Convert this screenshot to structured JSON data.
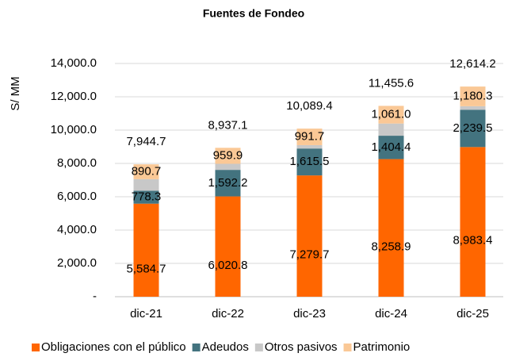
{
  "chart_data": {
    "type": "stacked_bar",
    "title": "Fuentes de Fondeo",
    "ylabel": "S/ MM",
    "categories": [
      "dic-21",
      "dic-22",
      "dic-23",
      "dic-24",
      "dic-25"
    ],
    "series": [
      {
        "name": "Obligaciones con el público",
        "color": "#ff6600",
        "values": [
          5584.7,
          6020.8,
          7279.7,
          8258.9,
          8983.4
        ],
        "value_labels": [
          "5,584.7",
          "6,020.8",
          "7,279.7",
          "8,258.9",
          "8,983.4"
        ]
      },
      {
        "name": "Adeudos",
        "color": "#43737f",
        "values": [
          778.3,
          1592.2,
          1615.5,
          1404.4,
          2239.5
        ],
        "value_labels": [
          "778.3",
          "1,592.2",
          "1,615.5",
          "1,404.4",
          "2,239.5"
        ]
      },
      {
        "name": "Otros pasivos",
        "color": "#c8c8c8",
        "values": [
          691.0,
          364.2,
          202.5,
          731.3,
          211.0
        ]
      },
      {
        "name": "Patrimonio",
        "color": "#fac896",
        "values": [
          890.7,
          959.9,
          991.7,
          1061.0,
          1180.3
        ],
        "value_labels": [
          "890.7",
          "959.9",
          "991.7",
          "1,061.0",
          "1,180.3"
        ]
      }
    ],
    "totals": [
      7944.7,
      8937.1,
      10089.4,
      11455.6,
      12614.2
    ],
    "total_labels": [
      "7,944.7",
      "8,937.1",
      "10,089.4",
      "11,455.6",
      "12,614.2"
    ],
    "ylim": [
      0,
      14000
    ],
    "yticks": [
      {
        "value": 0,
        "label": "-"
      },
      {
        "value": 2000,
        "label": "2,000.0"
      },
      {
        "value": 4000,
        "label": "4,000.0"
      },
      {
        "value": 6000,
        "label": "6,000.0"
      },
      {
        "value": 8000,
        "label": "8,000.0"
      },
      {
        "value": 10000,
        "label": "10,000.0"
      },
      {
        "value": 12000,
        "label": "12,000.0"
      },
      {
        "value": 14000,
        "label": "14,000.0"
      }
    ],
    "grid": true,
    "legend": "bottom"
  }
}
